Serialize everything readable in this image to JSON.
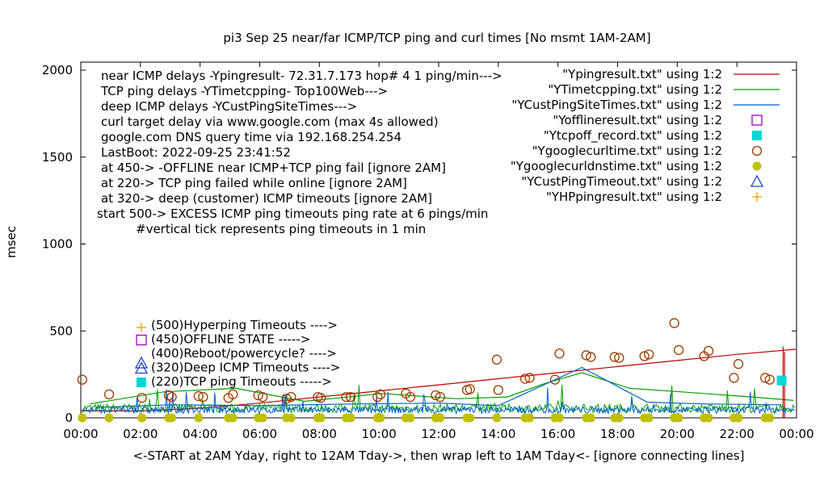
{
  "chart_data": {
    "type": "line",
    "title": "pi3 Sep 25  near/far ICMP/TCP ping and curl times [No msmt 1AM-2AM]",
    "xlabel": "<-START at 2AM Yday, right to 12AM Tday->, then wrap left to 1AM Tday<- [ignore connecting lines]",
    "ylabel": "msec",
    "xlim": [
      0,
      24
    ],
    "ylim": [
      0,
      2050
    ],
    "x_ticks": [
      "00:00",
      "02:00",
      "04:00",
      "06:00",
      "08:00",
      "10:00",
      "12:00",
      "14:00",
      "16:00",
      "18:00",
      "20:00",
      "22:00",
      "00:00"
    ],
    "y_ticks": [
      "0",
      "500",
      "1000",
      "1500",
      "2000"
    ],
    "y_tick_values": [
      0,
      500,
      1000,
      1500,
      2000
    ],
    "grid": false,
    "legend_position": "top-right",
    "notes": [
      "near ICMP delays -Ypingresult- 72.31.7.173 hop# 4 1 ping/min--->",
      "TCP ping delays -YTimetcpping- Top100Web--->",
      "deep ICMP delays -YCustPingSiteTimes--->",
      "curl target delay via www.google.com (max 4s allowed)",
      "google.com DNS query time via 192.168.254.254",
      "LastBoot: 2022-09-25 23:41:52",
      "at 450-> -OFFLINE near ICMP+TCP ping fail [ignore 2AM]",
      "at 220-> TCP ping failed while online [ignore 2AM]",
      "at 320-> deep (customer) ICMP timeouts [ignore 2AM]",
      "start 500-> EXCESS ICMP ping timeouts ping rate at 6 pings/min",
      "#vertical tick represents ping timeouts in 1 min"
    ],
    "key_labels": [
      "(500)Hyperping Timeouts ---->",
      "(450)OFFLINE STATE ----->",
      "(400)Reboot/powercycle? ---->",
      "(320)Deep ICMP Timeouts ---->",
      "(220)TCP ping Timeouts ----->"
    ],
    "series": [
      {
        "name": "\"Ypingresult.txt\" using 1:2",
        "style": "line",
        "color": "#c00000",
        "x": [
          0,
          2,
          4,
          6,
          8,
          10,
          12,
          14,
          16,
          18,
          20,
          22,
          24
        ],
        "y": [
          40,
          40,
          55,
          85,
          120,
          155,
          190,
          225,
          260,
          295,
          330,
          365,
          395
        ]
      },
      {
        "name": "\"YTimetcpping.txt\" using 1:2",
        "style": "line",
        "color": "#00a000",
        "x": [
          0.3,
          2.8,
          5.2,
          7.5,
          10.1,
          12.6,
          14.3,
          15.6,
          16.8,
          18.4,
          20.1,
          22.5,
          23.9
        ],
        "y": [
          80,
          150,
          170,
          95,
          140,
          110,
          120,
          200,
          260,
          170,
          150,
          120,
          100
        ]
      },
      {
        "name": "\"YCustPingSiteTimes.txt\" using 1:2",
        "style": "line",
        "color": "#0060d0",
        "x": [
          0.5,
          3.0,
          6.0,
          9.0,
          12.0,
          14.0,
          16.8,
          19.0,
          21.0,
          23.5
        ],
        "y": [
          60,
          75,
          70,
          80,
          85,
          70,
          290,
          90,
          80,
          75
        ]
      },
      {
        "name": "\"Yofflineresult.txt\" using 1:2",
        "style": "open-square",
        "color": "#a000c0",
        "x": [],
        "y": []
      },
      {
        "name": "\"Ytcpoff_record.txt\" using 1:2",
        "style": "filled-square",
        "color": "#00d8d8",
        "x": [
          23.5
        ],
        "y": [
          215
        ]
      },
      {
        "name": "\"Ygooglecurltime.txt\" using 1:2",
        "style": "open-circle",
        "color": "#a03a00",
        "x": [
          0.05,
          0.95,
          2.05,
          2.95,
          3.05,
          3.95,
          4.1,
          4.95,
          5.1,
          5.95,
          6.1,
          6.9,
          7.05,
          7.95,
          8.05,
          8.9,
          9.05,
          9.95,
          10.05,
          10.9,
          11.05,
          11.9,
          12.05,
          12.95,
          13.05,
          13.95,
          14.0,
          14.9,
          15.05,
          15.9,
          16.05,
          16.95,
          17.1,
          17.9,
          18.05,
          18.9,
          19.05,
          19.9,
          20.05,
          20.9,
          21.05,
          21.9,
          22.05,
          22.95,
          23.1
        ],
        "y": [
          220,
          135,
          115,
          130,
          120,
          125,
          120,
          115,
          135,
          130,
          120,
          110,
          120,
          120,
          115,
          120,
          120,
          120,
          135,
          140,
          120,
          130,
          120,
          160,
          165,
          335,
          160,
          225,
          230,
          220,
          370,
          360,
          350,
          350,
          345,
          355,
          365,
          545,
          390,
          355,
          385,
          230,
          310,
          230,
          220
        ]
      },
      {
        "name": "\"Ygooglecurldnstime.txt\" using 1:2",
        "style": "filled-circle",
        "color": "#c0c000",
        "x": [
          0.05,
          0.95,
          2.05,
          2.95,
          3.05,
          3.95,
          4.95,
          5.1,
          5.95,
          6.1,
          6.9,
          7.05,
          7.95,
          8.05,
          8.9,
          9.05,
          9.95,
          10.05,
          10.9,
          11.05,
          11.9,
          12.05,
          12.95,
          13.05,
          13.95,
          14.9,
          15.05,
          15.9,
          16.05,
          16.95,
          17.1,
          17.9,
          18.05,
          18.9,
          19.05,
          19.9,
          20.05,
          20.9,
          21.05,
          21.9,
          22.05,
          22.95,
          23.1
        ],
        "y": [
          0,
          0,
          0,
          0,
          0,
          0,
          0,
          0,
          0,
          0,
          0,
          0,
          0,
          0,
          0,
          0,
          0,
          0,
          0,
          0,
          0,
          0,
          0,
          0,
          0,
          0,
          0,
          0,
          0,
          0,
          0,
          0,
          0,
          0,
          0,
          0,
          0,
          0,
          0,
          0,
          0,
          0,
          0
        ]
      },
      {
        "name": "\"YCustPingTimeout.txt\" using 1:2",
        "style": "open-triangle",
        "color": "#2040c0",
        "x": [],
        "y": []
      },
      {
        "name": "\"YHPpingresult.txt\" using 1:2",
        "style": "plus",
        "color": "#e8a000",
        "x": [],
        "y": []
      }
    ],
    "vertical_ticks": {
      "color": "#d00000",
      "x": [
        23.55,
        23.6
      ],
      "height": [
        410,
        380
      ]
    }
  }
}
